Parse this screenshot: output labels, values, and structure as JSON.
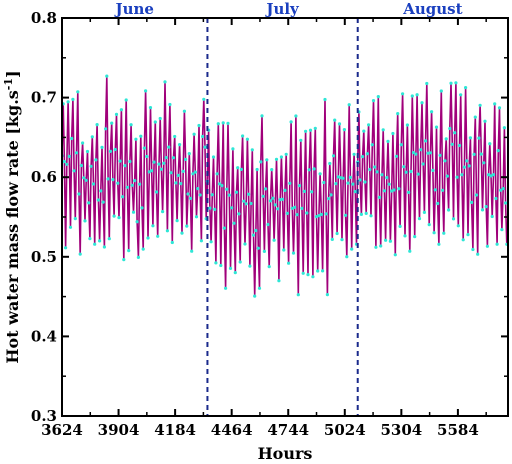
{
  "chart_data": {
    "type": "line",
    "xlabel": "Hours",
    "ylabel": "Hot water mass flow rate [kg.s",
    "ylabel_sup": "-1",
    "ylabel_end": "]",
    "xlim": [
      3624,
      5832
    ],
    "ylim": [
      0.3,
      0.8
    ],
    "xticks": [
      3624,
      3904,
      4184,
      4464,
      4744,
      5024,
      5304,
      5584
    ],
    "xtick_labels": [
      "3624",
      "3904",
      "4184",
      "4464",
      "4744",
      "5024",
      "5304",
      "5584"
    ],
    "yticks": [
      0.3,
      0.4,
      0.5,
      0.6,
      0.7,
      0.8
    ],
    "ytick_labels": [
      "0.3",
      "0.4",
      "0.5",
      "0.6",
      "0.7",
      "0.8"
    ],
    "month_dividers": [
      4344,
      5088
    ],
    "months": [
      {
        "label": "June",
        "center": 3984
      },
      {
        "label": "July",
        "center": 4716
      },
      {
        "label": "August",
        "center": 5460
      }
    ],
    "grid": false,
    "series": [
      {
        "line_color": "#a0007a",
        "marker_color": "#2ee6d6",
        "daily_cycle_hours": 24,
        "segments": [
          {
            "x_start": 3624,
            "x_end": 4344,
            "daily_peak_range": [
              0.62,
              0.73
            ],
            "daily_trough_range": [
              0.49,
              0.56
            ]
          },
          {
            "x_start": 4344,
            "x_end": 5088,
            "daily_peak_range": [
              0.6,
              0.7
            ],
            "daily_trough_range": [
              0.45,
              0.53
            ]
          },
          {
            "x_start": 5088,
            "x_end": 5832,
            "daily_peak_range": [
              0.64,
              0.72
            ],
            "daily_trough_range": [
              0.5,
              0.56
            ]
          }
        ]
      }
    ]
  }
}
